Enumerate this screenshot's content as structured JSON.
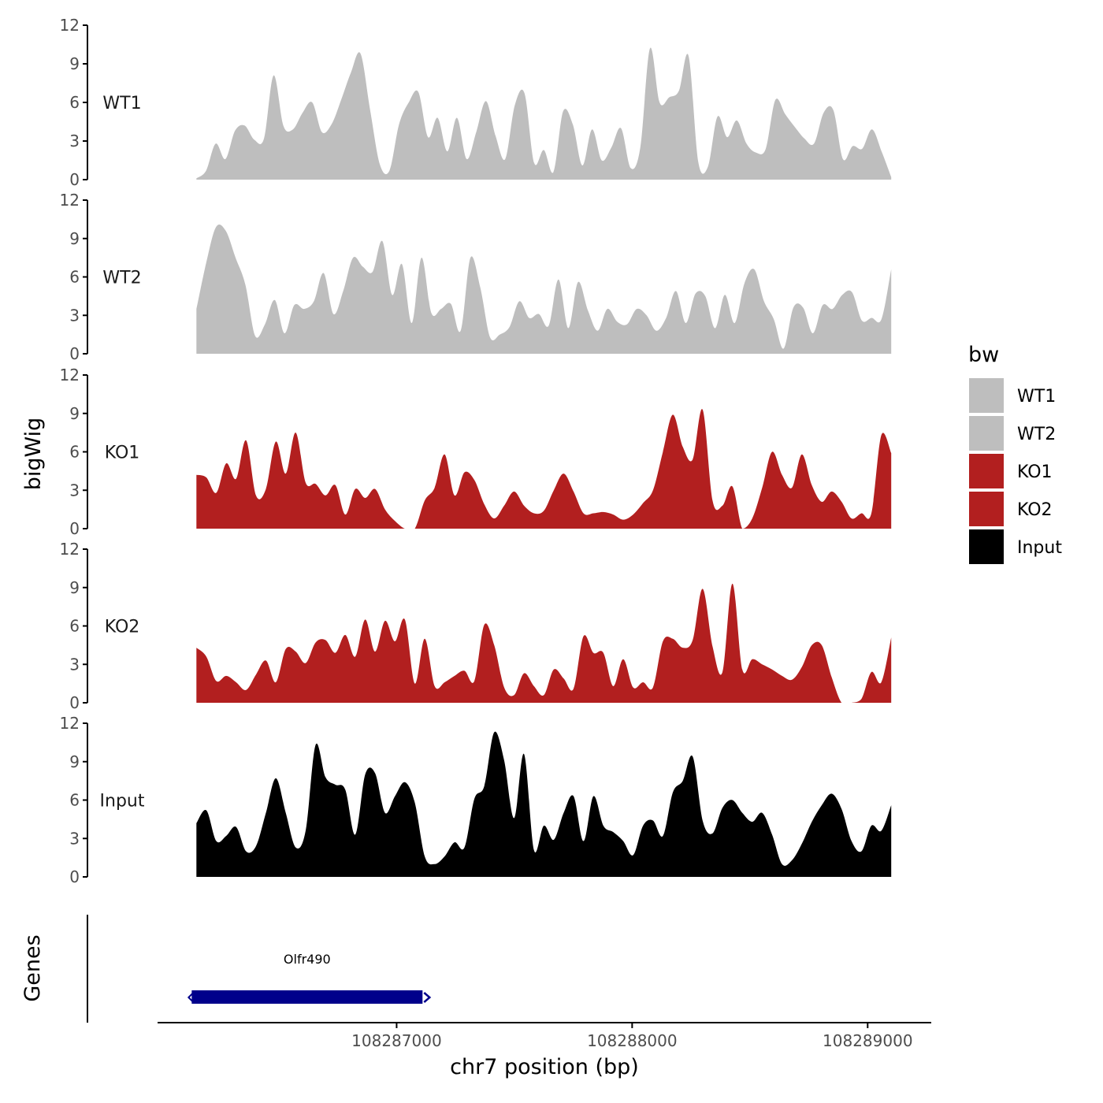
{
  "chart_data": {
    "type": "area",
    "chromosome_label": "chr7 position (bp)",
    "ylabel": "bigWig",
    "genes_label": "Genes",
    "legend_title": "bw",
    "x_range": [
      108286150,
      108289100
    ],
    "xlim": [
      108285985,
      108289270
    ],
    "ylim": [
      0,
      12
    ],
    "y_ticks": [
      0,
      3,
      6,
      9,
      12
    ],
    "x_ticks": [
      108287000,
      108288000,
      108289000
    ],
    "x_tick_labels": [
      "108287000",
      "108288000",
      "108289000"
    ],
    "series": [
      {
        "name": "WT1",
        "color": "#bebebe",
        "values": [
          0.1,
          0.7,
          2.8,
          1.6,
          3.8,
          4.2,
          3.1,
          3.2,
          8.1,
          4.2,
          3.9,
          5.2,
          6.0,
          3.7,
          4.3,
          6.2,
          8.3,
          9.8,
          5.4,
          1.2,
          0.7,
          4.3,
          6.0,
          6.8,
          3.3,
          4.8,
          2.2,
          4.8,
          1.6,
          3.7,
          6.1,
          3.4,
          1.6,
          5.8,
          6.7,
          1.3,
          2.3,
          0.6,
          5.3,
          4.3,
          1.1,
          3.9,
          1.5,
          2.5,
          4.0,
          0.9,
          2.5,
          10.2,
          6.0,
          6.4,
          6.9,
          9.6,
          1.4,
          1.0,
          4.9,
          3.3,
          4.6,
          2.8,
          2.1,
          2.4,
          6.2,
          5.1,
          4.1,
          3.2,
          2.8,
          5.2,
          5.4,
          1.6,
          2.6,
          2.4,
          3.9,
          2.2,
          0.2
        ]
      },
      {
        "name": "WT2",
        "color": "#bebebe",
        "values": [
          3.5,
          7.1,
          9.9,
          9.6,
          7.5,
          5.4,
          1.4,
          2.3,
          4.2,
          1.6,
          3.8,
          3.5,
          4.1,
          6.3,
          3.1,
          4.9,
          7.5,
          6.8,
          6.4,
          8.8,
          4.6,
          7.0,
          2.4,
          7.5,
          3.2,
          3.5,
          3.9,
          1.8,
          7.5,
          5.2,
          1.3,
          1.5,
          2.1,
          4.1,
          2.8,
          3.1,
          2.2,
          5.8,
          2.0,
          5.6,
          3.4,
          1.8,
          3.5,
          2.5,
          2.3,
          3.5,
          3.0,
          1.8,
          2.8,
          4.9,
          2.4,
          4.7,
          4.5,
          2.0,
          4.6,
          2.4,
          5.5,
          6.6,
          4.1,
          2.7,
          0.4,
          3.6,
          3.6,
          1.6,
          3.8,
          3.5,
          4.6,
          4.8,
          2.6,
          2.8,
          2.7,
          6.6
        ]
      },
      {
        "name": "KO1",
        "color": "#b21f1f",
        "values": [
          4.2,
          4.0,
          2.8,
          5.1,
          3.9,
          6.9,
          2.6,
          3.1,
          6.8,
          4.3,
          7.5,
          3.6,
          3.5,
          2.6,
          3.4,
          1.1,
          3.1,
          2.4,
          3.1,
          1.5,
          0.6,
          0.0,
          0.0,
          2.2,
          3.2,
          5.8,
          2.6,
          4.4,
          3.8,
          1.9,
          0.8,
          1.8,
          2.9,
          1.8,
          1.2,
          1.4,
          3.0,
          4.3,
          2.9,
          1.2,
          1.2,
          1.3,
          1.1,
          0.7,
          1.1,
          2.0,
          3.0,
          6.0,
          8.9,
          6.4,
          5.4,
          9.3,
          2.2,
          1.8,
          3.3,
          0.0,
          0.8,
          3.2,
          6.0,
          4.2,
          3.2,
          5.8,
          3.4,
          2.1,
          2.9,
          2.1,
          0.8,
          1.2,
          1.2,
          7.3,
          5.9
        ]
      },
      {
        "name": "KO2",
        "color": "#b21f1f",
        "values": [
          4.3,
          3.6,
          1.7,
          2.1,
          1.6,
          1.0,
          2.2,
          3.3,
          1.6,
          4.2,
          4.0,
          3.1,
          4.7,
          4.9,
          3.9,
          5.3,
          3.6,
          6.5,
          4.0,
          6.4,
          4.8,
          6.5,
          1.5,
          5.0,
          1.3,
          1.6,
          2.1,
          2.5,
          1.7,
          6.1,
          4.5,
          1.2,
          0.6,
          2.3,
          1.3,
          0.6,
          2.6,
          1.9,
          1.1,
          5.2,
          3.9,
          3.9,
          1.3,
          3.4,
          1.2,
          1.6,
          1.2,
          4.8,
          5.0,
          4.3,
          4.9,
          8.9,
          4.4,
          2.4,
          9.3,
          2.6,
          3.4,
          3.0,
          2.6,
          2.1,
          1.8,
          2.8,
          4.5,
          4.5,
          2.0,
          0.0,
          0.0,
          0.3,
          2.4,
          1.6,
          5.1
        ]
      },
      {
        "name": "Input",
        "color": "#000000",
        "values": [
          4.2,
          5.2,
          2.8,
          3.2,
          3.9,
          2.0,
          2.4,
          5.0,
          7.7,
          5.0,
          2.3,
          3.6,
          10.3,
          7.8,
          7.2,
          6.8,
          3.3,
          8.0,
          8.1,
          5.0,
          6.3,
          7.4,
          5.8,
          1.6,
          1.0,
          1.6,
          2.7,
          2.3,
          6.1,
          7.1,
          11.3,
          9.1,
          4.6,
          9.6,
          2.1,
          4.0,
          2.9,
          5.0,
          6.3,
          2.8,
          6.3,
          4.0,
          3.5,
          2.8,
          1.7,
          4.0,
          4.4,
          3.2,
          6.6,
          7.5,
          9.4,
          4.4,
          3.4,
          5.4,
          6.0,
          5.0,
          4.3,
          5.0,
          3.3,
          1.0,
          1.3,
          2.6,
          4.3,
          5.6,
          6.5,
          5.3,
          2.8,
          2.0,
          4.0,
          3.6,
          5.6
        ]
      }
    ],
    "legend": [
      {
        "label": "WT1",
        "color": "#bebebe"
      },
      {
        "label": "WT2",
        "color": "#bebebe"
      },
      {
        "label": "KO1",
        "color": "#b21f1f"
      },
      {
        "label": "KO2",
        "color": "#b21f1f"
      },
      {
        "label": "Input",
        "color": "#000000"
      }
    ],
    "genes": [
      {
        "name": "Olfr490",
        "start": 108286130,
        "end": 108287110,
        "strand": "+",
        "color": "#00008b"
      }
    ]
  }
}
